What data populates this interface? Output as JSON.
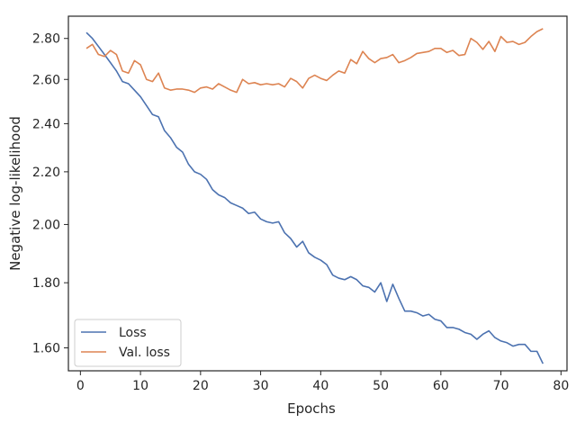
{
  "chart_data": {
    "type": "line",
    "title": "",
    "xlabel": "Epochs",
    "ylabel": "Negative log-likelihood",
    "xlim": [
      -2,
      81
    ],
    "ylim": [
      1.535,
      2.915
    ],
    "yscale": "log",
    "xticks": [
      0,
      10,
      20,
      30,
      40,
      50,
      60,
      70,
      80
    ],
    "yticks": [
      1.6,
      1.8,
      2.0,
      2.2,
      2.4,
      2.6,
      2.8
    ],
    "ytick_labels": [
      "1.60",
      "1.80",
      "2.00",
      "2.20",
      "2.40",
      "2.60",
      "2.80"
    ],
    "grid": false,
    "legend_position": "lower-left",
    "x": [
      1,
      2,
      3,
      4,
      5,
      6,
      7,
      8,
      9,
      10,
      11,
      12,
      13,
      14,
      15,
      16,
      17,
      18,
      19,
      20,
      21,
      22,
      23,
      24,
      25,
      26,
      27,
      28,
      29,
      30,
      31,
      32,
      33,
      34,
      35,
      36,
      37,
      38,
      39,
      40,
      41,
      42,
      43,
      44,
      45,
      46,
      47,
      48,
      49,
      50,
      51,
      52,
      53,
      54,
      55,
      56,
      57,
      58,
      59,
      60,
      61,
      62,
      63,
      64,
      65,
      66,
      67,
      68,
      69,
      70,
      71,
      72,
      73,
      74,
      75,
      76,
      77
    ],
    "series": [
      {
        "name": "Loss",
        "color": "#4c72b0",
        "values": [
          2.83,
          2.8,
          2.76,
          2.72,
          2.68,
          2.64,
          2.59,
          2.58,
          2.55,
          2.52,
          2.48,
          2.44,
          2.43,
          2.37,
          2.34,
          2.3,
          2.28,
          2.23,
          2.2,
          2.19,
          2.17,
          2.13,
          2.11,
          2.1,
          2.08,
          2.07,
          2.06,
          2.04,
          2.045,
          2.02,
          2.01,
          2.005,
          2.01,
          1.97,
          1.95,
          1.92,
          1.94,
          1.9,
          1.885,
          1.875,
          1.86,
          1.825,
          1.815,
          1.81,
          1.82,
          1.81,
          1.79,
          1.785,
          1.77,
          1.8,
          1.74,
          1.795,
          1.75,
          1.71,
          1.71,
          1.705,
          1.695,
          1.7,
          1.685,
          1.68,
          1.66,
          1.66,
          1.655,
          1.645,
          1.64,
          1.625,
          1.64,
          1.65,
          1.63,
          1.62,
          1.615,
          1.605,
          1.61,
          1.61,
          1.59,
          1.59,
          1.555
        ]
      },
      {
        "name": "Val. loss",
        "color": "#dd8452",
        "values": [
          2.75,
          2.77,
          2.72,
          2.71,
          2.74,
          2.72,
          2.64,
          2.63,
          2.69,
          2.67,
          2.6,
          2.59,
          2.63,
          2.56,
          2.55,
          2.555,
          2.555,
          2.55,
          2.54,
          2.56,
          2.565,
          2.555,
          2.58,
          2.565,
          2.55,
          2.54,
          2.6,
          2.58,
          2.585,
          2.575,
          2.58,
          2.575,
          2.58,
          2.565,
          2.605,
          2.59,
          2.56,
          2.605,
          2.62,
          2.605,
          2.595,
          2.62,
          2.64,
          2.63,
          2.695,
          2.675,
          2.735,
          2.7,
          2.68,
          2.7,
          2.705,
          2.72,
          2.68,
          2.69,
          2.705,
          2.725,
          2.73,
          2.735,
          2.75,
          2.75,
          2.73,
          2.74,
          2.715,
          2.72,
          2.8,
          2.78,
          2.745,
          2.785,
          2.735,
          2.81,
          2.78,
          2.785,
          2.77,
          2.78,
          2.81,
          2.835,
          2.85
        ]
      }
    ]
  }
}
